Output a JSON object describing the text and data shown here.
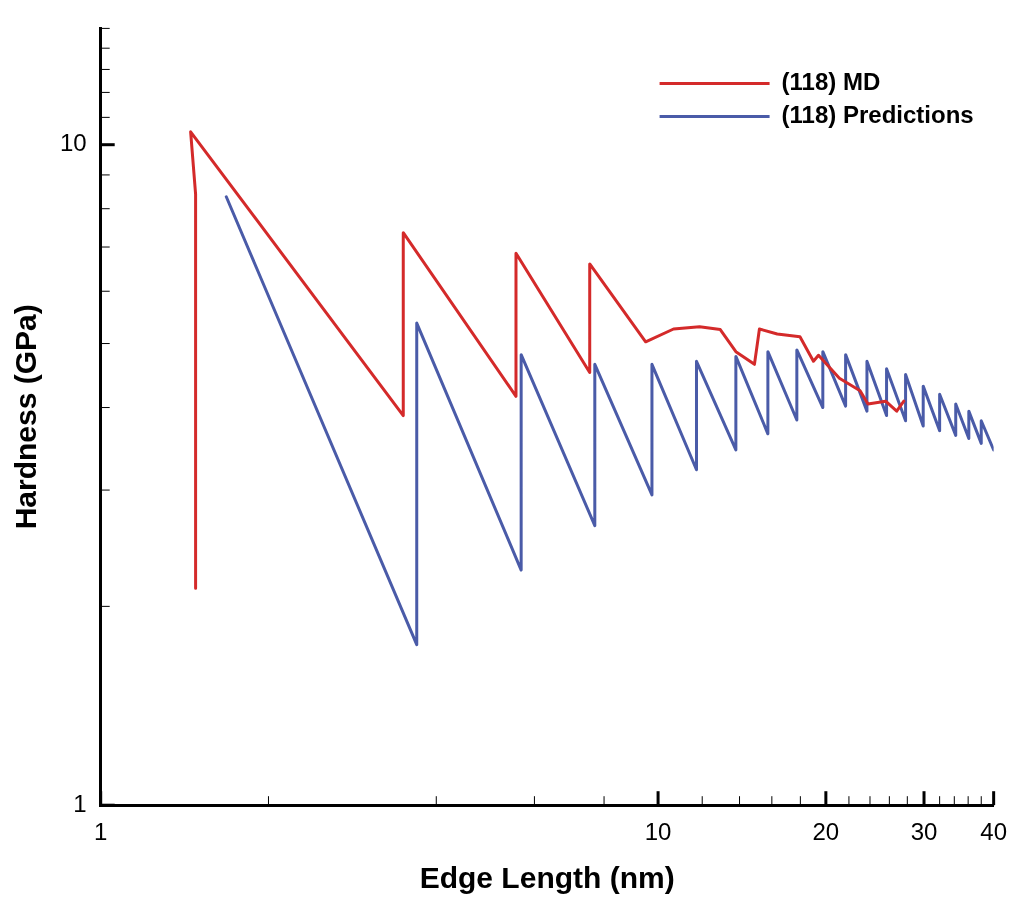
{
  "chart_data": {
    "type": "line",
    "xlabel": "Edge Length (nm)",
    "ylabel": "Hardness (GPa)",
    "log": "xy",
    "grid": false,
    "legend": "top right",
    "marker": "none",
    "line_style": "solid",
    "xlim": [
      1,
      40
    ],
    "ylim": [
      1,
      15
    ],
    "xticks": [
      1,
      {
        "value": 2,
        "label": null
      },
      {
        "value": 4,
        "label": null
      },
      {
        "value": 6,
        "label": null
      },
      {
        "value": 8,
        "label": null
      },
      10,
      {
        "value": 12,
        "label": null
      },
      {
        "value": 14,
        "label": null
      },
      {
        "value": 16,
        "label": null
      },
      {
        "value": 18,
        "label": null
      },
      20,
      {
        "value": 22,
        "label": null
      },
      {
        "value": 24,
        "label": null
      },
      {
        "value": 26,
        "label": null
      },
      {
        "value": 28,
        "label": null
      },
      30,
      {
        "value": 32,
        "label": null
      },
      {
        "value": 34,
        "label": null
      },
      {
        "value": 36,
        "label": null
      },
      {
        "value": 38,
        "label": null
      },
      40
    ],
    "yticks": [
      1,
      {
        "value": 2,
        "label": null
      },
      {
        "value": 3,
        "label": null
      },
      {
        "value": 4,
        "label": null
      },
      {
        "value": 5,
        "label": null
      },
      {
        "value": 6,
        "label": null
      },
      {
        "value": 7,
        "label": null
      },
      {
        "value": 8,
        "label": null
      },
      {
        "value": 9,
        "label": null
      },
      10,
      {
        "value": 11,
        "label": null
      },
      {
        "value": 12,
        "label": null
      },
      {
        "value": 13,
        "label": null
      },
      {
        "value": 14,
        "label": null
      },
      {
        "value": 15,
        "label": null
      }
    ],
    "series": [
      {
        "name": "(118) MD",
        "color": "#d42a2a",
        "x": [
          1.48,
          1.48,
          1.45,
          3.49,
          3.49,
          5.56,
          5.56,
          7.54,
          7.54,
          9.5,
          10.66,
          11.87,
          12.93,
          13.79,
          14.89,
          15.2,
          16.36,
          17.97,
          19.0,
          19.4,
          21.15,
          23.04,
          23.8,
          25.6,
          26.8,
          27.6
        ],
        "values": [
          2.13,
          8.42,
          10.46,
          3.89,
          7.36,
          4.16,
          6.85,
          4.52,
          6.6,
          5.03,
          5.26,
          5.3,
          5.25,
          4.86,
          4.65,
          5.26,
          5.17,
          5.12,
          4.7,
          4.8,
          4.43,
          4.24,
          4.05,
          4.09,
          3.95,
          4.09
        ]
      },
      {
        "name": "(118) Predictions",
        "color": "#4a5ba8",
        "x": [
          1.68,
          3.69,
          3.69,
          5.68,
          5.68,
          7.7,
          7.7,
          9.75,
          9.75,
          11.72,
          11.72,
          13.79,
          13.79,
          15.74,
          15.74,
          17.74,
          17.74,
          19.75,
          19.75,
          21.7,
          21.7,
          23.7,
          23.7,
          25.7,
          25.7,
          27.8,
          27.8,
          29.9,
          29.9,
          32.0,
          32.0,
          34.2,
          34.2,
          36.1,
          36.1,
          38.0,
          38.0,
          40
        ],
        "values": [
          8.34,
          1.75,
          5.37,
          2.27,
          4.81,
          2.65,
          4.65,
          2.95,
          4.65,
          3.22,
          4.7,
          3.45,
          4.78,
          3.65,
          4.86,
          3.83,
          4.89,
          4.0,
          4.86,
          4.02,
          4.81,
          3.95,
          4.7,
          3.89,
          4.58,
          3.82,
          4.49,
          3.75,
          4.31,
          3.69,
          4.19,
          3.63,
          4.05,
          3.59,
          3.95,
          3.53,
          3.82,
          3.45
        ]
      }
    ]
  }
}
